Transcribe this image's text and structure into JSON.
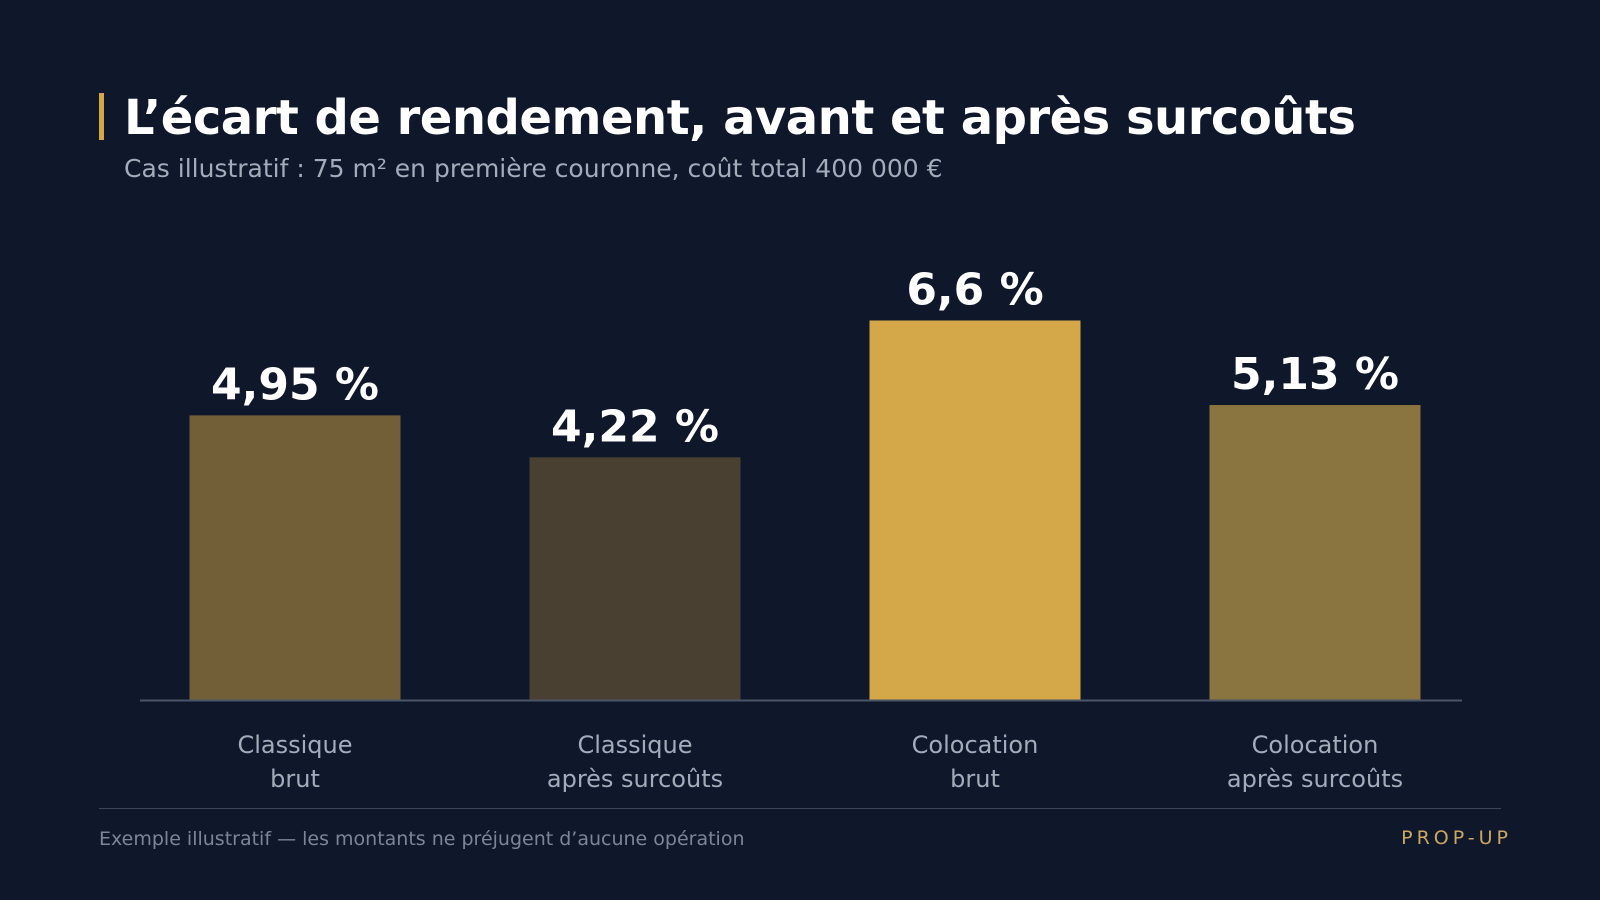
{
  "header": {
    "title": "L’écart de rendement, avant et après surcoûts",
    "subtitle": "Cas illustratif : 75 m² en première couronne, coût total 400 000 €"
  },
  "footer": {
    "note": "Exemple illustratif — les montants ne préjugent d’aucune opération",
    "brand": "PROP-UP"
  },
  "colors": {
    "background": "#0f172a",
    "accent": "#d4a849"
  },
  "chart_data": {
    "type": "bar",
    "title": "",
    "xlabel": "",
    "ylabel": "",
    "ylim": [
      0,
      8
    ],
    "grid": false,
    "categories": [
      [
        "Classique",
        "brut"
      ],
      [
        "Classique",
        "après surcoûts"
      ],
      [
        "Colocation",
        "brut"
      ],
      [
        "Colocation",
        "après surcoûts"
      ]
    ],
    "values": [
      4.95,
      4.22,
      6.6,
      5.13
    ],
    "value_labels": [
      "4,95 %",
      "4,22 %",
      "6,6 %",
      "5,13 %"
    ],
    "bar_colors": [
      "#725f38",
      "#4a4032",
      "#d4a849",
      "#8a743f"
    ]
  }
}
